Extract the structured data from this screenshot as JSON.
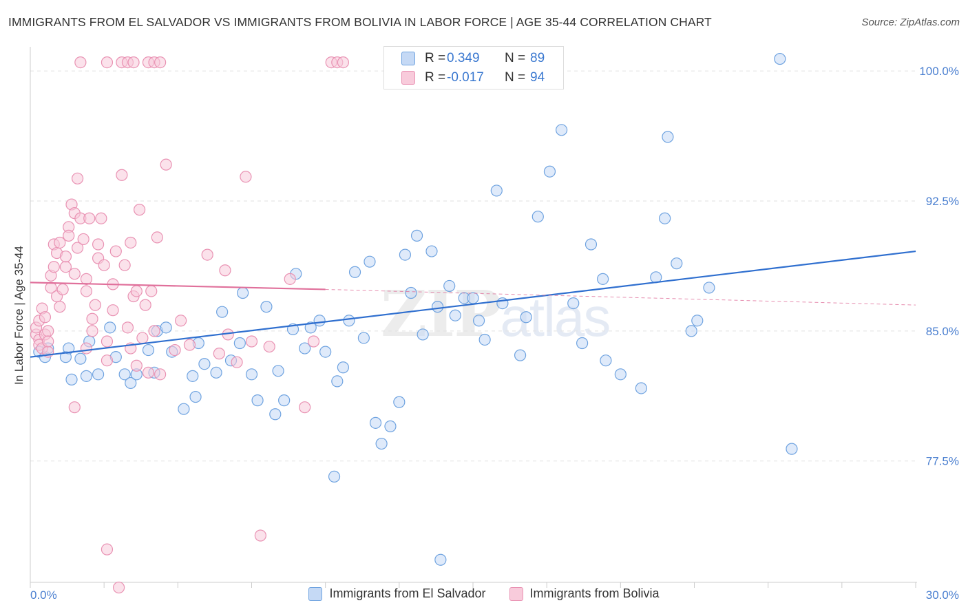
{
  "title": "IMMIGRANTS FROM EL SALVADOR VS IMMIGRANTS FROM BOLIVIA IN LABOR FORCE | AGE 35-44 CORRELATION CHART",
  "source": "Source: ZipAtlas.com",
  "watermark": {
    "zip": "ZIP",
    "atlas": "atlas"
  },
  "legend_stats": [
    {
      "r_label": "R =",
      "r_value": "0.349",
      "n_label": "N =",
      "n_value": "89",
      "color": "#6fa3e0"
    },
    {
      "r_label": "R =",
      "r_value": "-0.017",
      "n_label": "N =",
      "n_value": "94",
      "color": "#f2a5bf"
    }
  ],
  "chart_data": {
    "type": "scatter",
    "title": "IMMIGRANTS FROM EL SALVADOR VS IMMIGRANTS FROM BOLIVIA IN LABOR FORCE | AGE 35-44 CORRELATION CHART",
    "xlabel": "",
    "ylabel": "In Labor Force | Age 35-44",
    "xlim": [
      0,
      30
    ],
    "ylim": [
      70.5,
      101.0
    ],
    "x_tick_labels": [
      {
        "value": 0,
        "label": "0.0%"
      },
      {
        "value": 30,
        "label": "30.0%"
      }
    ],
    "y_tick_labels": [
      {
        "value": 77.5,
        "label": "77.5%"
      },
      {
        "value": 85.0,
        "label": "85.0%"
      },
      {
        "value": 92.5,
        "label": "92.5%"
      },
      {
        "value": 100.0,
        "label": "100.0%"
      }
    ],
    "grid": true,
    "legend_position": "bottom",
    "series": [
      {
        "name": "Immigrants from El Salvador",
        "color": "#6fa3e0",
        "fill": "#c5d9f5",
        "trend": {
          "x": [
            0,
            30
          ],
          "y": [
            83.5,
            89.6
          ]
        },
        "points": [
          [
            0.3,
            83.8
          ],
          [
            0.5,
            83.5
          ],
          [
            0.6,
            84.0
          ],
          [
            1.2,
            83.5
          ],
          [
            1.3,
            84.0
          ],
          [
            1.4,
            82.2
          ],
          [
            1.7,
            83.4
          ],
          [
            1.9,
            82.4
          ],
          [
            2.0,
            84.4
          ],
          [
            2.3,
            82.5
          ],
          [
            2.7,
            85.2
          ],
          [
            2.9,
            83.5
          ],
          [
            3.2,
            82.5
          ],
          [
            3.4,
            82.0
          ],
          [
            3.6,
            82.5
          ],
          [
            4.0,
            83.9
          ],
          [
            4.2,
            82.6
          ],
          [
            4.3,
            85.0
          ],
          [
            4.6,
            85.2
          ],
          [
            4.8,
            83.8
          ],
          [
            5.2,
            80.5
          ],
          [
            5.5,
            82.4
          ],
          [
            5.6,
            81.2
          ],
          [
            5.7,
            84.3
          ],
          [
            5.9,
            83.1
          ],
          [
            6.3,
            82.6
          ],
          [
            6.5,
            86.1
          ],
          [
            6.8,
            83.3
          ],
          [
            7.1,
            84.3
          ],
          [
            7.2,
            87.2
          ],
          [
            7.5,
            82.5
          ],
          [
            7.7,
            81.0
          ],
          [
            8.0,
            86.4
          ],
          [
            8.3,
            80.2
          ],
          [
            8.4,
            82.7
          ],
          [
            8.6,
            81.0
          ],
          [
            8.9,
            85.1
          ],
          [
            9.0,
            88.3
          ],
          [
            9.3,
            84.0
          ],
          [
            9.5,
            85.2
          ],
          [
            9.8,
            85.6
          ],
          [
            10.0,
            83.8
          ],
          [
            10.3,
            76.6
          ],
          [
            10.4,
            82.1
          ],
          [
            10.6,
            82.9
          ],
          [
            10.8,
            85.6
          ],
          [
            11.0,
            88.4
          ],
          [
            11.3,
            84.6
          ],
          [
            11.5,
            89.0
          ],
          [
            11.7,
            79.7
          ],
          [
            11.9,
            78.5
          ],
          [
            12.2,
            79.5
          ],
          [
            12.5,
            80.9
          ],
          [
            12.7,
            89.4
          ],
          [
            12.9,
            87.2
          ],
          [
            13.1,
            90.5
          ],
          [
            13.3,
            84.8
          ],
          [
            13.6,
            89.6
          ],
          [
            13.8,
            86.4
          ],
          [
            13.9,
            71.8
          ],
          [
            14.2,
            87.6
          ],
          [
            14.4,
            85.9
          ],
          [
            14.7,
            86.9
          ],
          [
            15.0,
            86.9
          ],
          [
            15.2,
            85.6
          ],
          [
            15.4,
            84.5
          ],
          [
            15.8,
            93.1
          ],
          [
            16.0,
            86.6
          ],
          [
            16.6,
            83.6
          ],
          [
            16.8,
            85.8
          ],
          [
            17.2,
            91.6
          ],
          [
            17.6,
            94.2
          ],
          [
            18.0,
            96.6
          ],
          [
            18.4,
            86.6
          ],
          [
            18.7,
            84.3
          ],
          [
            19.0,
            90.0
          ],
          [
            19.4,
            88.0
          ],
          [
            19.5,
            83.3
          ],
          [
            20.0,
            82.5
          ],
          [
            20.7,
            81.7
          ],
          [
            21.2,
            88.1
          ],
          [
            21.5,
            91.5
          ],
          [
            21.6,
            96.2
          ],
          [
            21.9,
            88.9
          ],
          [
            22.4,
            85.0
          ],
          [
            22.6,
            85.6
          ],
          [
            23.0,
            87.5
          ],
          [
            25.4,
            100.7
          ],
          [
            25.8,
            78.2
          ]
        ]
      },
      {
        "name": "Immigrants from Bolivia",
        "color": "#e992b3",
        "fill": "#f8cbdb",
        "trend": {
          "x": [
            0,
            10
          ],
          "y": [
            87.8,
            87.4
          ]
        },
        "trend_extension": {
          "x": [
            10,
            30
          ],
          "y": [
            87.4,
            86.5
          ]
        },
        "points": [
          [
            0.2,
            84.8
          ],
          [
            0.2,
            85.2
          ],
          [
            0.3,
            84.5
          ],
          [
            0.3,
            85.6
          ],
          [
            0.3,
            84.2
          ],
          [
            0.4,
            86.3
          ],
          [
            0.4,
            84.0
          ],
          [
            0.5,
            85.8
          ],
          [
            0.5,
            84.8
          ],
          [
            0.6,
            83.8
          ],
          [
            0.6,
            85.0
          ],
          [
            0.6,
            84.4
          ],
          [
            0.7,
            87.5
          ],
          [
            0.7,
            88.2
          ],
          [
            0.8,
            90.0
          ],
          [
            0.8,
            88.7
          ],
          [
            0.9,
            87.0
          ],
          [
            0.9,
            89.5
          ],
          [
            1.0,
            90.1
          ],
          [
            1.0,
            86.4
          ],
          [
            1.1,
            87.4
          ],
          [
            1.2,
            88.7
          ],
          [
            1.2,
            89.3
          ],
          [
            1.3,
            91.0
          ],
          [
            1.3,
            90.5
          ],
          [
            1.4,
            92.3
          ],
          [
            1.5,
            91.8
          ],
          [
            1.5,
            88.3
          ],
          [
            1.6,
            93.8
          ],
          [
            1.6,
            89.8
          ],
          [
            1.7,
            91.5
          ],
          [
            1.8,
            90.3
          ],
          [
            1.9,
            88.0
          ],
          [
            1.9,
            87.3
          ],
          [
            2.0,
            91.5
          ],
          [
            2.1,
            85.7
          ],
          [
            2.2,
            86.5
          ],
          [
            2.3,
            89.2
          ],
          [
            2.3,
            90.0
          ],
          [
            2.4,
            91.5
          ],
          [
            2.5,
            88.8
          ],
          [
            2.6,
            84.4
          ],
          [
            2.6,
            83.3
          ],
          [
            2.8,
            87.7
          ],
          [
            2.8,
            86.2
          ],
          [
            2.9,
            89.6
          ],
          [
            3.1,
            94.0
          ],
          [
            3.2,
            88.8
          ],
          [
            3.3,
            85.2
          ],
          [
            3.4,
            90.1
          ],
          [
            3.4,
            84.0
          ],
          [
            3.5,
            87.0
          ],
          [
            3.6,
            87.3
          ],
          [
            3.6,
            83.0
          ],
          [
            3.7,
            92.0
          ],
          [
            3.8,
            84.6
          ],
          [
            3.9,
            86.5
          ],
          [
            4.0,
            82.6
          ],
          [
            4.1,
            87.3
          ],
          [
            4.2,
            85.0
          ],
          [
            4.3,
            90.4
          ],
          [
            4.4,
            82.5
          ],
          [
            4.6,
            94.6
          ],
          [
            4.9,
            83.9
          ],
          [
            5.1,
            85.6
          ],
          [
            5.4,
            84.2
          ],
          [
            6.0,
            89.4
          ],
          [
            6.4,
            83.7
          ],
          [
            6.6,
            88.5
          ],
          [
            6.7,
            84.8
          ],
          [
            7.0,
            83.2
          ],
          [
            7.3,
            93.9
          ],
          [
            7.5,
            84.4
          ],
          [
            7.8,
            73.2
          ],
          [
            8.1,
            84.1
          ],
          [
            8.8,
            88.0
          ],
          [
            9.3,
            80.6
          ],
          [
            9.6,
            84.4
          ],
          [
            10.2,
            100.5
          ],
          [
            10.4,
            100.5
          ],
          [
            10.6,
            100.5
          ],
          [
            1.7,
            100.5
          ],
          [
            2.6,
            100.5
          ],
          [
            3.1,
            100.5
          ],
          [
            3.3,
            100.5
          ],
          [
            3.5,
            100.5
          ],
          [
            4.0,
            100.5
          ],
          [
            4.2,
            100.5
          ],
          [
            4.4,
            100.5
          ],
          [
            1.9,
            84.0
          ],
          [
            2.6,
            72.4
          ],
          [
            1.5,
            80.6
          ],
          [
            3.0,
            70.2
          ],
          [
            2.1,
            85.0
          ]
        ]
      }
    ]
  }
}
